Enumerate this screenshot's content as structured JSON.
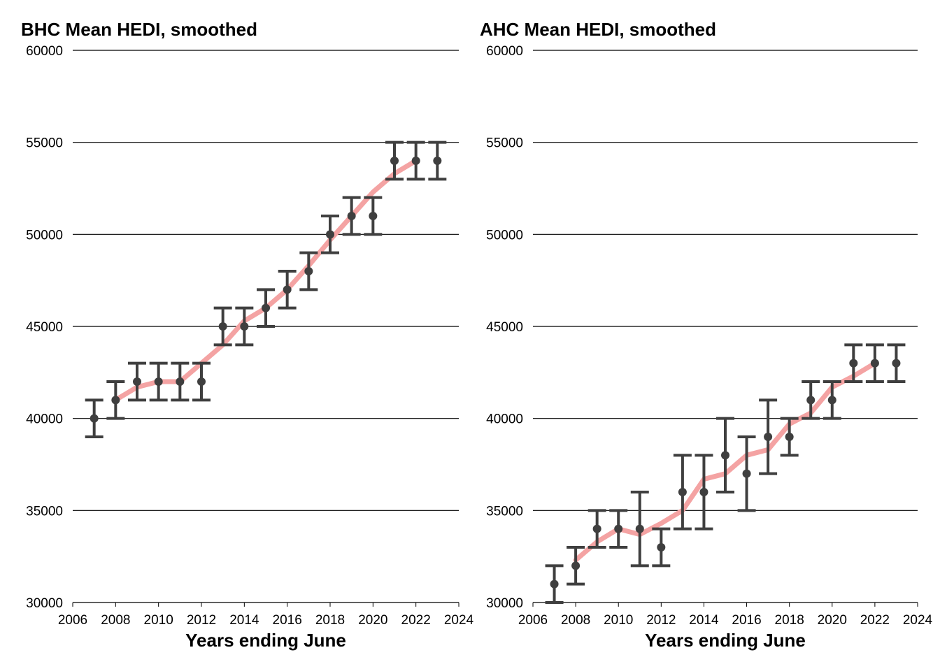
{
  "chart_data": [
    {
      "type": "line",
      "title": "BHC Mean HEDI, smoothed",
      "xlabel": "Years ending June",
      "ylabel": "",
      "xlim": [
        2006,
        2024
      ],
      "ylim": [
        30000,
        60000
      ],
      "xticks": [
        "2006",
        "2008",
        "2010",
        "2012",
        "2014",
        "2016",
        "2018",
        "2020",
        "2022",
        "2024"
      ],
      "yticks": [
        "30000",
        "35000",
        "40000",
        "45000",
        "50000",
        "55000",
        "60000"
      ],
      "grid": "horizontal",
      "colors": {
        "smoothed": "#f4a3a3",
        "points": "#3f3f3f"
      },
      "points": {
        "x": [
          2007,
          2008,
          2009,
          2010,
          2011,
          2012,
          2013,
          2014,
          2015,
          2016,
          2017,
          2018,
          2019,
          2020,
          2021,
          2022,
          2023
        ],
        "y": [
          40000,
          41000,
          42000,
          42000,
          42000,
          42000,
          45000,
          45000,
          46000,
          47000,
          48000,
          50000,
          51000,
          51000,
          54000,
          54000,
          54000
        ],
        "lower": [
          39000,
          40000,
          41000,
          41000,
          41000,
          41000,
          44000,
          44000,
          45000,
          46000,
          47000,
          49000,
          50000,
          50000,
          53000,
          53000,
          53000
        ],
        "upper": [
          41000,
          42000,
          43000,
          43000,
          43000,
          43000,
          46000,
          46000,
          47000,
          48000,
          49000,
          51000,
          52000,
          52000,
          55000,
          55000,
          55000
        ]
      },
      "smoothed": {
        "x": [
          2008,
          2009,
          2010,
          2011,
          2012,
          2013,
          2014,
          2015,
          2016,
          2017,
          2018,
          2019,
          2020,
          2021,
          2022
        ],
        "y": [
          41000,
          41700,
          42000,
          42000,
          43000,
          44000,
          45300,
          46000,
          47000,
          48300,
          49700,
          51000,
          52300,
          53300,
          54000
        ]
      }
    },
    {
      "type": "line",
      "title": "AHC Mean HEDI, smoothed",
      "xlabel": "Years ending June",
      "ylabel": "",
      "xlim": [
        2006,
        2024
      ],
      "ylim": [
        30000,
        60000
      ],
      "xticks": [
        "2006",
        "2008",
        "2010",
        "2012",
        "2014",
        "2016",
        "2018",
        "2020",
        "2022",
        "2024"
      ],
      "yticks": [
        "30000",
        "35000",
        "40000",
        "45000",
        "50000",
        "55000",
        "60000"
      ],
      "grid": "horizontal",
      "colors": {
        "smoothed": "#f4a3a3",
        "points": "#3f3f3f"
      },
      "points": {
        "x": [
          2007,
          2008,
          2009,
          2010,
          2011,
          2012,
          2013,
          2014,
          2015,
          2016,
          2017,
          2018,
          2019,
          2020,
          2021,
          2022,
          2023
        ],
        "y": [
          31000,
          32000,
          34000,
          34000,
          34000,
          33000,
          36000,
          36000,
          38000,
          37000,
          39000,
          39000,
          41000,
          41000,
          43000,
          43000,
          43000
        ],
        "lower": [
          30000,
          31000,
          33000,
          33000,
          32000,
          32000,
          34000,
          34000,
          36000,
          35000,
          37000,
          38000,
          40000,
          40000,
          42000,
          42000,
          42000
        ],
        "upper": [
          32000,
          33000,
          35000,
          35000,
          36000,
          34000,
          38000,
          38000,
          40000,
          39000,
          41000,
          40000,
          42000,
          42000,
          44000,
          44000,
          44000
        ]
      },
      "smoothed": {
        "x": [
          2008,
          2009,
          2010,
          2011,
          2012,
          2013,
          2014,
          2015,
          2016,
          2017,
          2018,
          2019,
          2020,
          2021,
          2022
        ],
        "y": [
          32300,
          33300,
          34000,
          33700,
          34300,
          35000,
          36700,
          37000,
          38000,
          38300,
          39700,
          40300,
          41700,
          42300,
          43000
        ]
      }
    }
  ]
}
